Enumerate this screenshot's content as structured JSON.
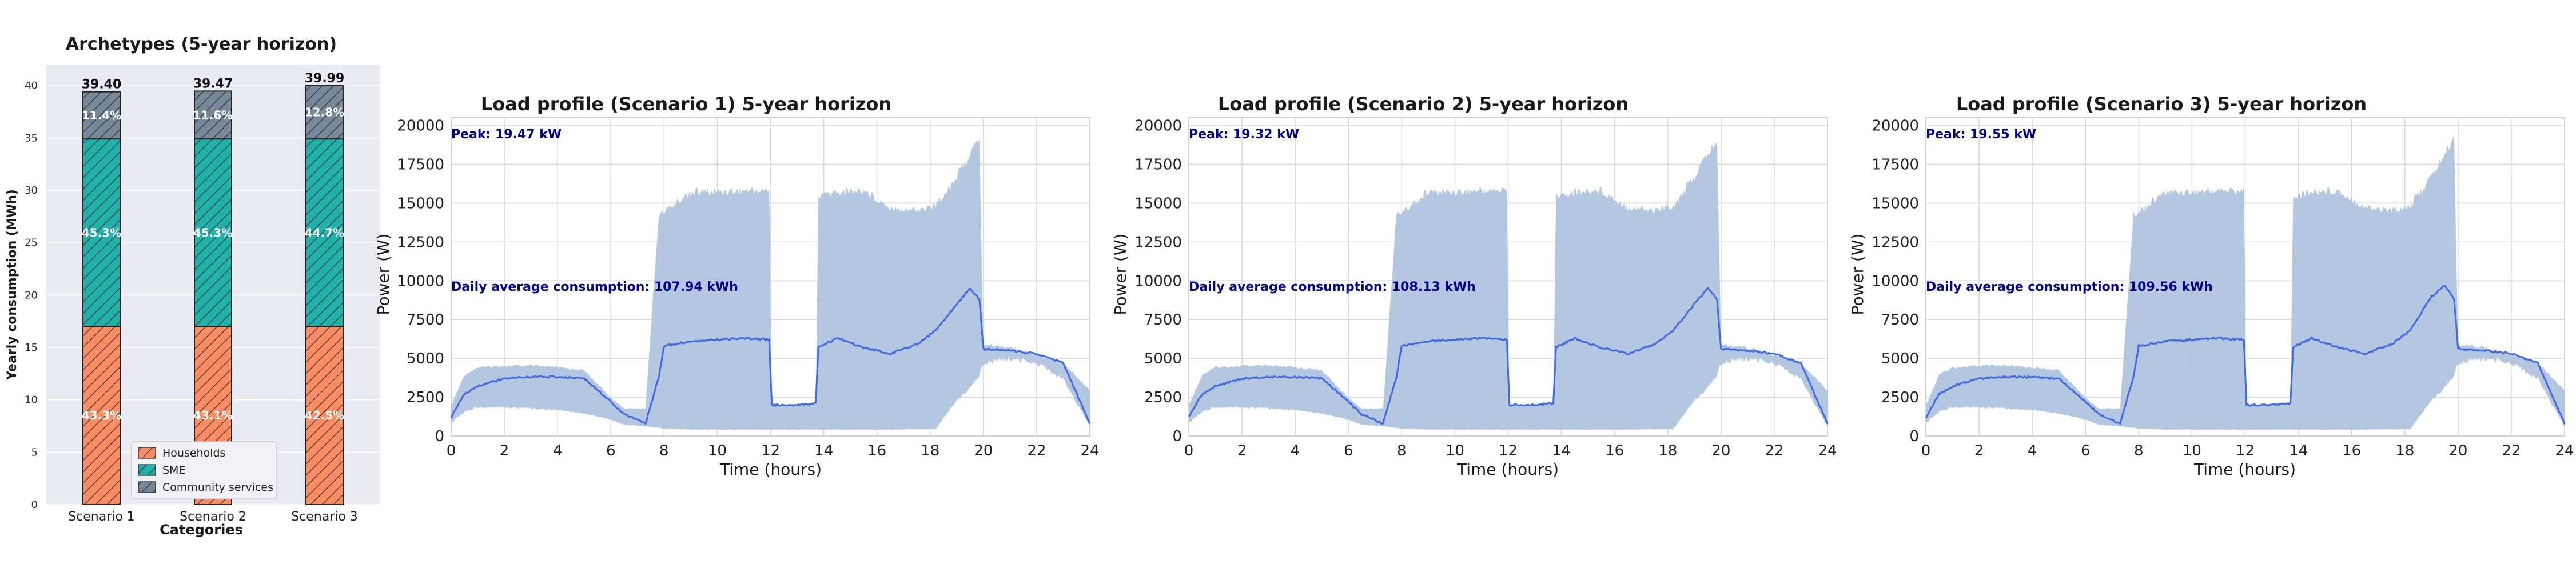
{
  "figure": {
    "bar_chart": {
      "title": "Archetypes (5-year horizon)",
      "ylabel": "Yearly consumption (MWh)",
      "xlabel": "Categories",
      "legend": [
        "Households",
        "SME",
        "Community services"
      ]
    },
    "profiles": [
      {
        "title": "Load profile (Scenario 1) 5-year horizon",
        "ylabel": "Power (W)",
        "xlabel": "Time (hours)",
        "peak_text": "Peak: 19.47 kW",
        "avg_text": "Daily average consumption: 107.94 kWh"
      },
      {
        "title": "Load profile (Scenario 2) 5-year horizon",
        "ylabel": "Power (W)",
        "xlabel": "Time (hours)",
        "peak_text": "Peak: 19.32 kW",
        "avg_text": "Daily average consumption: 108.13 kWh"
      },
      {
        "title": "Load profile (Scenario 3) 5-year horizon",
        "ylabel": "Power (W)",
        "xlabel": "Time (hours)",
        "peak_text": "Peak: 19.55 kW",
        "avg_text": "Daily average consumption: 109.56 kWh"
      }
    ]
  },
  "chart_data": [
    {
      "type": "bar",
      "stacked": true,
      "title": "Archetypes (5-year horizon)",
      "xlabel": "Categories",
      "ylabel": "Yearly consumption (MWh)",
      "categories": [
        "Scenario 1",
        "Scenario 2",
        "Scenario 3"
      ],
      "ylim": [
        0,
        42
      ],
      "yticks": [
        0,
        5,
        10,
        15,
        20,
        25,
        30,
        35,
        40
      ],
      "grid": true,
      "legend_position": "bottom-center",
      "series": [
        {
          "name": "Households",
          "values": [
            17.0,
            17.0,
            17.0
          ],
          "percent_labels": [
            "43.3%",
            "43.1%",
            "42.5%"
          ],
          "color": "#fc8d62",
          "hatch": "//"
        },
        {
          "name": "SME",
          "values": [
            17.9,
            17.9,
            17.9
          ],
          "percent_labels": [
            "45.3%",
            "45.3%",
            "44.7%"
          ],
          "color": "#20b2aa",
          "hatch": "//"
        },
        {
          "name": "Community services",
          "values": [
            4.5,
            4.57,
            5.09
          ],
          "percent_labels": [
            "11.4%",
            "11.6%",
            "12.8%"
          ],
          "color": "#778899",
          "hatch": "//"
        }
      ],
      "totals": [
        "39.40",
        "39.47",
        "39.99"
      ]
    },
    {
      "type": "area",
      "title": "Load profile (Scenario 1) 5-year horizon",
      "xlabel": "Time (hours)",
      "ylabel": "Power (W)",
      "xlim": [
        0,
        24
      ],
      "ylim": [
        0,
        20500
      ],
      "xticks": [
        0,
        2,
        4,
        6,
        8,
        10,
        12,
        14,
        16,
        18,
        20,
        22,
        24
      ],
      "yticks": [
        0,
        2500,
        5000,
        7500,
        10000,
        12500,
        15000,
        17500,
        20000
      ],
      "grid": true,
      "annotations": [
        "Peak: 19.47 kW",
        "Daily average consumption: 107.94 kWh"
      ],
      "x": [
        0,
        0.5,
        1,
        2,
        3,
        4,
        5,
        6,
        6.5,
        7.3,
        7.8,
        8,
        9,
        10,
        11,
        11.95,
        12.05,
        13,
        13.7,
        13.8,
        14.5,
        15.5,
        16.5,
        17.5,
        18.2,
        19,
        19.5,
        19.85,
        20,
        21,
        22,
        23,
        24
      ],
      "series": [
        {
          "name": "range_max",
          "color": "#b0c4de",
          "values": [
            2000,
            4000,
            4500,
            4600,
            4600,
            4500,
            4300,
            2500,
            1800,
            1800,
            14500,
            14700,
            16000,
            16000,
            16100,
            16100,
            2000,
            2100,
            2200,
            15700,
            16000,
            16100,
            15000,
            14800,
            15100,
            17000,
            18500,
            19470,
            6000,
            5800,
            5300,
            4800,
            3000
          ]
        },
        {
          "name": "range_min",
          "color": "#b0c4de",
          "values": [
            800,
            1500,
            1800,
            1800,
            1700,
            1600,
            1400,
            1000,
            700,
            600,
            500,
            450,
            400,
            400,
            400,
            400,
            400,
            400,
            400,
            400,
            400,
            400,
            400,
            420,
            420,
            2200,
            3000,
            3800,
            4500,
            4800,
            4500,
            3500,
            600
          ]
        },
        {
          "name": "mean",
          "color": "#4169e1",
          "values": [
            1200,
            2700,
            3200,
            3700,
            3800,
            3800,
            3700,
            2200,
            1400,
            800,
            3800,
            5800,
            6100,
            6200,
            6300,
            6200,
            2000,
            2000,
            2100,
            5700,
            6300,
            5700,
            5300,
            5900,
            6800,
            8500,
            9500,
            8800,
            5600,
            5500,
            5300,
            4700,
            800
          ]
        }
      ]
    },
    {
      "type": "area",
      "title": "Load profile (Scenario 2) 5-year horizon",
      "xlabel": "Time (hours)",
      "ylabel": "Power (W)",
      "xlim": [
        0,
        24
      ],
      "ylim": [
        0,
        20500
      ],
      "xticks": [
        0,
        2,
        4,
        6,
        8,
        10,
        12,
        14,
        16,
        18,
        20,
        22,
        24
      ],
      "yticks": [
        0,
        2500,
        5000,
        7500,
        10000,
        12500,
        15000,
        17500,
        20000
      ],
      "grid": true,
      "annotations": [
        "Peak: 19.32 kW",
        "Daily average consumption: 108.13 kWh"
      ],
      "x": [
        0,
        0.5,
        1,
        2,
        3,
        4,
        5,
        6,
        6.5,
        7.3,
        7.8,
        8,
        9,
        10,
        11,
        11.95,
        12.05,
        13,
        13.7,
        13.8,
        14.5,
        15.5,
        16.5,
        17.5,
        18.2,
        19,
        19.5,
        19.85,
        20,
        21,
        22,
        23,
        24
      ],
      "series": [
        {
          "name": "range_max",
          "color": "#b0c4de",
          "values": [
            2000,
            4000,
            4500,
            4600,
            4600,
            4500,
            4300,
            2500,
            1800,
            1800,
            14500,
            14700,
            16000,
            16000,
            16100,
            16100,
            2000,
            2100,
            2200,
            15700,
            16000,
            16100,
            15000,
            14800,
            15100,
            17000,
            18500,
            19320,
            6000,
            5800,
            5300,
            4800,
            3000
          ]
        },
        {
          "name": "range_min",
          "color": "#b0c4de",
          "values": [
            800,
            1500,
            1800,
            1800,
            1700,
            1600,
            1400,
            1000,
            700,
            600,
            500,
            450,
            400,
            400,
            400,
            400,
            400,
            400,
            400,
            400,
            400,
            400,
            400,
            420,
            420,
            2200,
            3000,
            3800,
            4500,
            4800,
            4500,
            3500,
            600
          ]
        },
        {
          "name": "mean",
          "color": "#4169e1",
          "values": [
            1200,
            2700,
            3200,
            3700,
            3800,
            3800,
            3700,
            2200,
            1400,
            800,
            3800,
            5800,
            6100,
            6200,
            6300,
            6200,
            2000,
            2000,
            2100,
            5700,
            6300,
            5700,
            5300,
            5900,
            6800,
            8500,
            9500,
            8800,
            5600,
            5500,
            5300,
            4700,
            800
          ]
        }
      ]
    },
    {
      "type": "area",
      "title": "Load profile (Scenario 3) 5-year horizon",
      "xlabel": "Time (hours)",
      "ylabel": "Power (W)",
      "xlim": [
        0,
        24
      ],
      "ylim": [
        0,
        20500
      ],
      "xticks": [
        0,
        2,
        4,
        6,
        8,
        10,
        12,
        14,
        16,
        18,
        20,
        22,
        24
      ],
      "yticks": [
        0,
        2500,
        5000,
        7500,
        10000,
        12500,
        15000,
        17500,
        20000
      ],
      "grid": true,
      "annotations": [
        "Peak: 19.55 kW",
        "Daily average consumption: 109.56 kWh"
      ],
      "x": [
        0,
        0.5,
        1,
        2,
        3,
        4,
        5,
        6,
        6.5,
        7.3,
        7.8,
        8,
        9,
        10,
        11,
        11.95,
        12.05,
        13,
        13.7,
        13.8,
        14.5,
        15.5,
        16.5,
        17.5,
        18.2,
        19,
        19.5,
        19.85,
        20,
        21,
        22,
        23,
        24
      ],
      "series": [
        {
          "name": "range_max",
          "color": "#b0c4de",
          "values": [
            2000,
            4000,
            4500,
            4600,
            4600,
            4500,
            4300,
            2500,
            1800,
            1800,
            14500,
            14700,
            16000,
            16000,
            16100,
            16100,
            2000,
            2100,
            2200,
            15700,
            16000,
            16100,
            15000,
            14800,
            15100,
            17000,
            18500,
            19550,
            6000,
            5800,
            5300,
            4800,
            3000
          ]
        },
        {
          "name": "range_min",
          "color": "#b0c4de",
          "values": [
            800,
            1500,
            1800,
            1800,
            1700,
            1600,
            1400,
            1000,
            700,
            600,
            500,
            450,
            400,
            400,
            400,
            400,
            400,
            400,
            400,
            400,
            400,
            400,
            400,
            420,
            420,
            2200,
            3000,
            3800,
            4500,
            4800,
            4500,
            3500,
            600
          ]
        },
        {
          "name": "mean",
          "color": "#4169e1",
          "values": [
            1200,
            2700,
            3200,
            3700,
            3800,
            3800,
            3700,
            2200,
            1400,
            800,
            3800,
            5800,
            6100,
            6200,
            6300,
            6200,
            2000,
            2000,
            2100,
            5700,
            6300,
            5700,
            5300,
            5900,
            6800,
            9000,
            9700,
            8800,
            5600,
            5500,
            5300,
            4700,
            800
          ]
        }
      ]
    }
  ]
}
